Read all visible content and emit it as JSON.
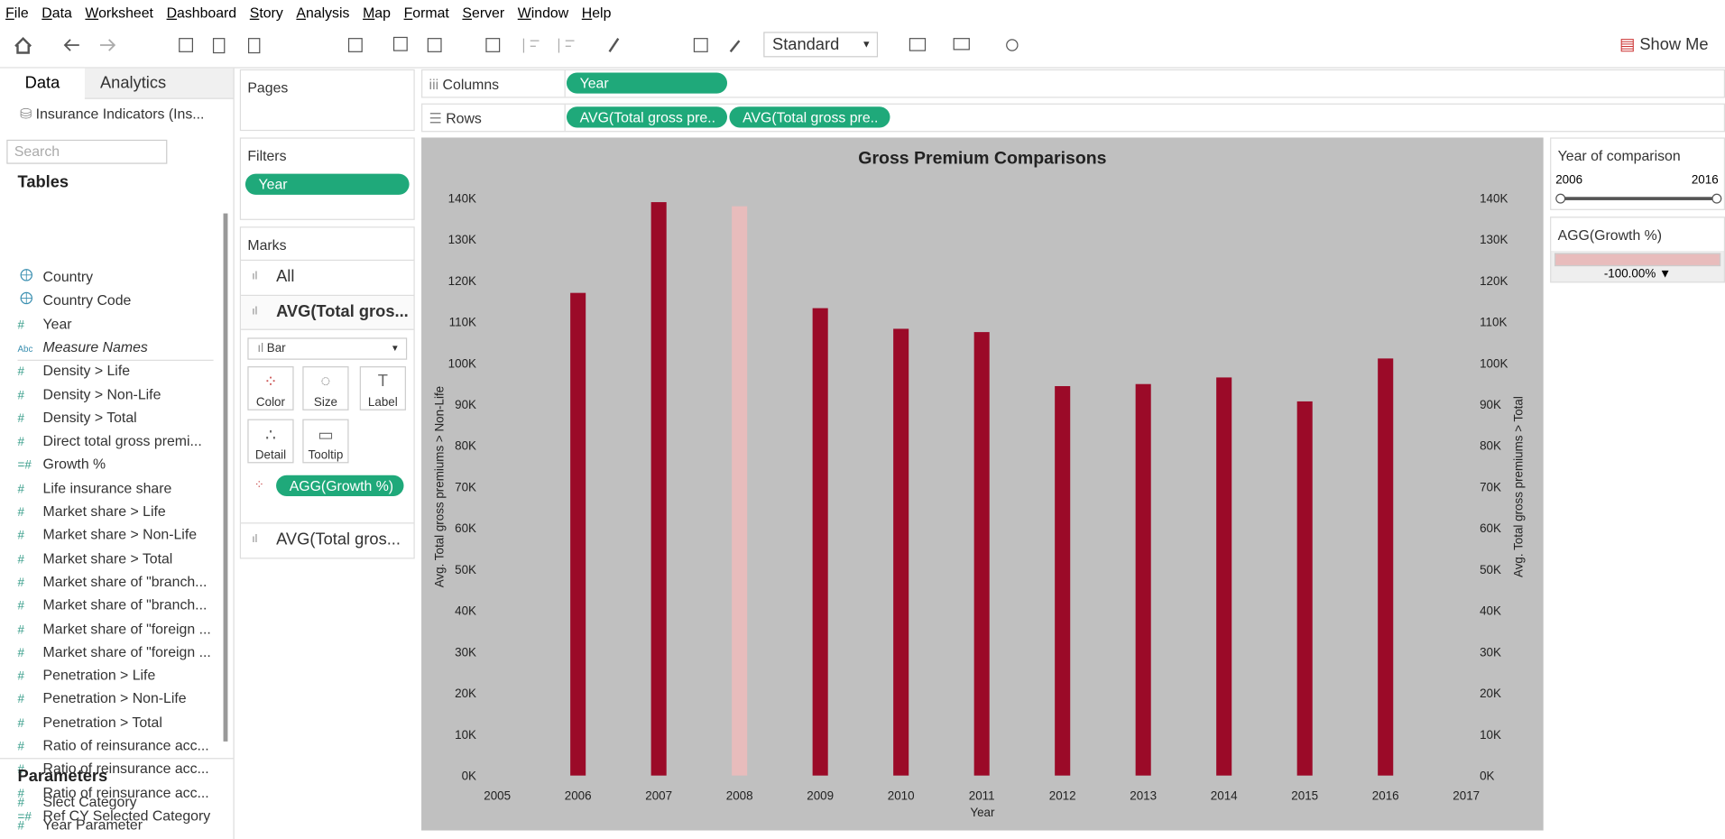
{
  "menu": [
    "File",
    "Data",
    "Worksheet",
    "Dashboard",
    "Story",
    "Analysis",
    "Map",
    "Format",
    "Server",
    "Window",
    "Help"
  ],
  "toolbar": {
    "view_size": "Standard",
    "show_me": "Show Me"
  },
  "data_pane": {
    "tabs": [
      "Data",
      "Analytics"
    ],
    "datasource": "Insurance Indicators (Ins...",
    "search_placeholder": "Search",
    "tables_title": "Tables",
    "fields": [
      {
        "kind": "geo",
        "name": "Country"
      },
      {
        "kind": "geo",
        "name": "Country Code"
      },
      {
        "kind": "number",
        "name": "Year"
      },
      {
        "kind": "string",
        "name": "Measure Names"
      },
      {
        "kind": "number",
        "name": "Density > Life"
      },
      {
        "kind": "number",
        "name": "Density > Non-Life"
      },
      {
        "kind": "number",
        "name": "Density > Total"
      },
      {
        "kind": "number",
        "name": "Direct total gross premi..."
      },
      {
        "kind": "calc",
        "name": "Growth %"
      },
      {
        "kind": "number",
        "name": "Life insurance share"
      },
      {
        "kind": "number",
        "name": "Market share > Life"
      },
      {
        "kind": "number",
        "name": "Market share > Non-Life"
      },
      {
        "kind": "number",
        "name": "Market share > Total"
      },
      {
        "kind": "number",
        "name": "Market share of \"branch..."
      },
      {
        "kind": "number",
        "name": "Market share of \"branch..."
      },
      {
        "kind": "number",
        "name": "Market share of \"foreign ..."
      },
      {
        "kind": "number",
        "name": "Market share of \"foreign ..."
      },
      {
        "kind": "number",
        "name": "Penetration > Life"
      },
      {
        "kind": "number",
        "name": "Penetration > Non-Life"
      },
      {
        "kind": "number",
        "name": "Penetration > Total"
      },
      {
        "kind": "number",
        "name": "Ratio of reinsurance acc..."
      },
      {
        "kind": "number",
        "name": "Ratio of reinsurance acc..."
      },
      {
        "kind": "number",
        "name": "Ratio of reinsurance acc..."
      },
      {
        "kind": "calc",
        "name": "Ref CY Selected Category"
      }
    ],
    "parameters_title": "Parameters",
    "parameters": [
      "Slect Category",
      "Year Parameter"
    ]
  },
  "pages": {
    "title": "Pages"
  },
  "filters": {
    "title": "Filters",
    "pills": [
      "Year"
    ]
  },
  "marks": {
    "title": "Marks",
    "layers": [
      "All",
      "AVG(Total gros...",
      "AVG(Total gros..."
    ],
    "mark_type": "Bar",
    "buttons": [
      "Color",
      "Size",
      "Label",
      "Detail",
      "Tooltip"
    ],
    "color_pill": "AGG(Growth %)"
  },
  "columns": {
    "label": "Columns",
    "pills": [
      "Year"
    ]
  },
  "rows": {
    "label": "Rows",
    "pills": [
      "AVG(Total gross pre..",
      "AVG(Total gross pre.."
    ]
  },
  "chart_data": {
    "type": "bar",
    "title": "Gross Premium Comparisons",
    "x_label": "Year",
    "y_label": "Avg. Total gross premiums > Non-Life",
    "y2_label": "Avg. Total gross premiums > Total",
    "categories": [
      "2005",
      "2006",
      "2007",
      "2008",
      "2009",
      "2010",
      "2011",
      "2012",
      "2013",
      "2014",
      "2015",
      "2016",
      "2017"
    ],
    "values": [
      null,
      117000,
      139000,
      138000,
      113300,
      108300,
      107500,
      94400,
      94900,
      96500,
      90700,
      101100,
      null
    ],
    "colors": [
      null,
      "#9b0a28",
      "#9b0a28",
      "#e8bcbc",
      "#9b0a28",
      "#9b0a28",
      "#9b0a28",
      "#9b0a28",
      "#9b0a28",
      "#9b0a28",
      "#9b0a28",
      "#9b0a28",
      null
    ],
    "ylim": [
      0,
      140000
    ],
    "yticks": [
      {
        "value": 0,
        "label": "0K"
      },
      {
        "value": 10000,
        "label": "10K"
      },
      {
        "value": 20000,
        "label": "20K"
      },
      {
        "value": 30000,
        "label": "30K"
      },
      {
        "value": 40000,
        "label": "40K"
      },
      {
        "value": 50000,
        "label": "50K"
      },
      {
        "value": 60000,
        "label": "60K"
      },
      {
        "value": 70000,
        "label": "70K"
      },
      {
        "value": 80000,
        "label": "80K"
      },
      {
        "value": 90000,
        "label": "90K"
      },
      {
        "value": 100000,
        "label": "100K"
      },
      {
        "value": 110000,
        "label": "110K"
      },
      {
        "value": 120000,
        "label": "120K"
      },
      {
        "value": 130000,
        "label": "130K"
      },
      {
        "value": 140000,
        "label": "140K"
      }
    ],
    "y2lim": [
      0,
      140000
    ],
    "y2ticks": [
      {
        "value": 0,
        "label": "0K"
      },
      {
        "value": 10000,
        "label": "10K"
      },
      {
        "value": 20000,
        "label": "20K"
      },
      {
        "value": 30000,
        "label": "30K"
      },
      {
        "value": 40000,
        "label": "40K"
      },
      {
        "value": 50000,
        "label": "50K"
      },
      {
        "value": 60000,
        "label": "60K"
      },
      {
        "value": 70000,
        "label": "70K"
      },
      {
        "value": 80000,
        "label": "80K"
      },
      {
        "value": 90000,
        "label": "90K"
      },
      {
        "value": 100000,
        "label": "100K"
      },
      {
        "value": 110000,
        "label": "110K"
      },
      {
        "value": 120000,
        "label": "120K"
      },
      {
        "value": 130000,
        "label": "130K"
      },
      {
        "value": 140000,
        "label": "140K"
      }
    ],
    "background": "#c0c0c0"
  },
  "legend_year": {
    "title": "Year of comparison",
    "min": "2006",
    "max": "2016"
  },
  "legend_growth": {
    "title": "AGG(Growth %)",
    "value": "-100.00% ▼",
    "color": "#e8bcbc"
  }
}
